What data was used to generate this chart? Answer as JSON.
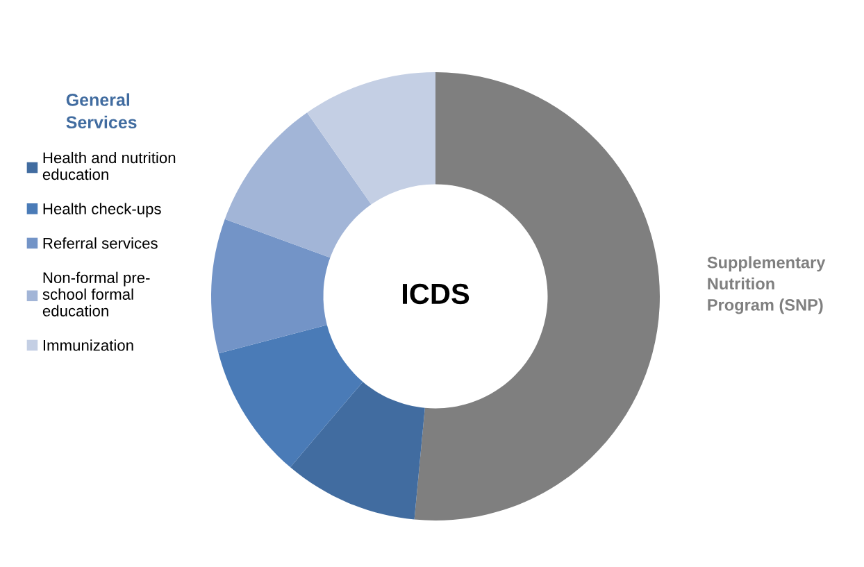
{
  "chart_data": {
    "type": "donut",
    "categories": [
      "Supplementary\nNutrition\nProgram (SNP)",
      "Health and nutrition\neducation",
      "Health check-ups",
      "Referral services",
      "Non-formal pre-\nschool formal\neducation",
      "Immunization"
    ],
    "values": [
      51.5,
      9.7,
      9.7,
      9.7,
      9.7,
      9.7
    ],
    "colors": [
      "#7f7f7f",
      "#416ca0",
      "#4a7bb7",
      "#7394c7",
      "#a2b5d7",
      "#c4cfe4"
    ],
    "legend_title": "General\nServices",
    "legend": "left",
    "annotations": [
      "ICDS"
    ]
  }
}
